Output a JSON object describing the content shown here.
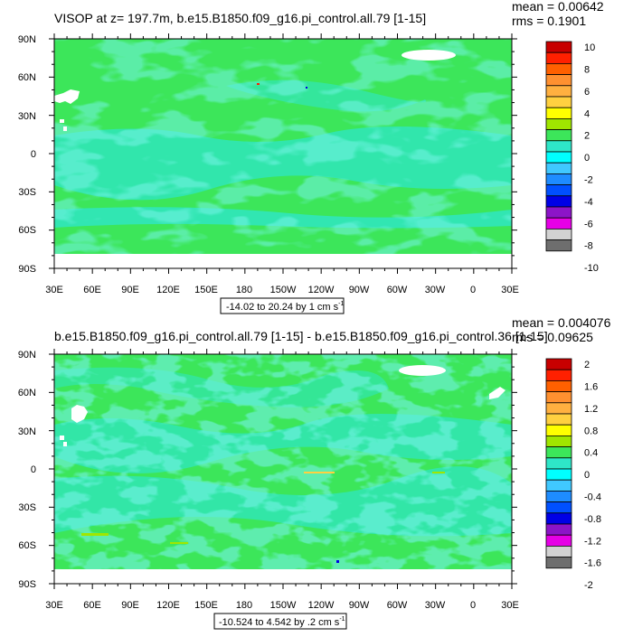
{
  "palette": {
    "dark_red": "#c80000",
    "red": "#ff2000",
    "orange_red": "#ff6000",
    "orange": "#ff9030",
    "light_orange": "#ffb040",
    "gold": "#ffd040",
    "yellow": "#ffff00",
    "yellow_green": "#a0e600",
    "green": "#3ce65a",
    "turquoise": "#2ee6c8",
    "cyan": "#00ffff",
    "light_blue": "#40c8ff",
    "azure": "#1e8cff",
    "blue": "#0050ff",
    "dark_blue": "#0000e6",
    "purple": "#8c14c8",
    "magenta": "#e600e6",
    "light_gray": "#d2d2d2",
    "dark_gray": "#6e6e6e",
    "land": "#ffffff"
  },
  "panels": [
    {
      "title": "VISOP at z= 197.7m, b.e15.B1850.f09_g16.pi_control.all.79 [1-15]",
      "stats": {
        "mean": "mean = 0.00642",
        "rms": "rms = 0.1901"
      },
      "range_label": "-14.02 to 20.24 by 1 cm s",
      "range_exponent": "-1",
      "colorbar_labels": [
        "10",
        "8",
        "6",
        "4",
        "2",
        "0",
        "-2",
        "-4",
        "-6",
        "-8",
        "-10"
      ],
      "colorbar_colors": [
        "#c80000",
        "#ff2000",
        "#ff6000",
        "#ff9030",
        "#ffb040",
        "#ffd040",
        "#ffff00",
        "#a0e600",
        "#3ce65a",
        "#2ee6c8",
        "#00ffff",
        "#40c8ff",
        "#1e8cff",
        "#0050ff",
        "#0000e6",
        "#8c14c8",
        "#e600e6",
        "#d2d2d2",
        "#6e6e6e"
      ],
      "lat_labels": [
        "90N",
        "60N",
        "30N",
        "0",
        "30S",
        "60S",
        "90S"
      ],
      "lon_labels": [
        "30E",
        "60E",
        "90E",
        "120E",
        "150E",
        "180",
        "150W",
        "120W",
        "90W",
        "60W",
        "30W",
        "0",
        "30E"
      ]
    },
    {
      "title": "b.e15.B1850.f09_g16.pi_control.all.79 [1-15] - b.e15.B1850.f09_g16.pi_control.36 [1-15]",
      "stats": {
        "mean": "mean = 0.004076",
        "rms": "rms = 0.09625"
      },
      "range_label": "-10.524 to 4.542 by .2 cm s",
      "range_exponent": "-1",
      "colorbar_labels": [
        "2",
        "1.6",
        "1.2",
        "0.8",
        "0.4",
        "0",
        "-0.4",
        "-0.8",
        "-1.2",
        "-1.6",
        "-2"
      ],
      "colorbar_colors": [
        "#c80000",
        "#ff2000",
        "#ff6000",
        "#ff9030",
        "#ffb040",
        "#ffd040",
        "#ffff00",
        "#a0e600",
        "#3ce65a",
        "#2ee6c8",
        "#00ffff",
        "#40c8ff",
        "#1e8cff",
        "#0050ff",
        "#0000e6",
        "#8c14c8",
        "#e600e6",
        "#d2d2d2",
        "#6e6e6e"
      ],
      "lat_labels": [
        "90N",
        "60N",
        "30N",
        "0",
        "30S",
        "60S",
        "90S"
      ],
      "lon_labels": [
        "30E",
        "60E",
        "90E",
        "120E",
        "150E",
        "180",
        "150W",
        "120W",
        "90W",
        "60W",
        "30W",
        "0",
        "30E"
      ]
    }
  ]
}
